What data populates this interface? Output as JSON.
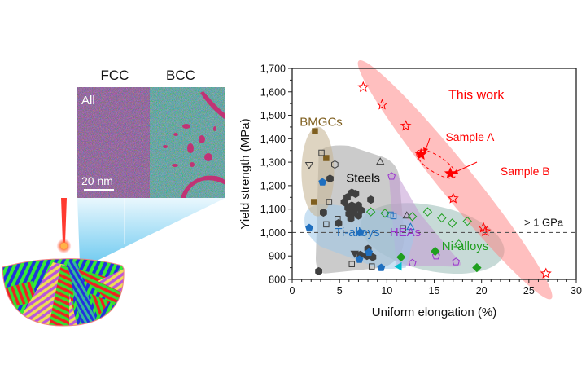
{
  "illustration": {
    "phase_labels": [
      "FCC",
      "BCC"
    ],
    "micrograph_label": "All",
    "scale_bar_label": "20 nm"
  },
  "chart_data": {
    "type": "scatter",
    "title": "",
    "xlabel": "Uniform elongation (%)",
    "ylabel": "Yield strength (MPa)",
    "xlim": [
      0,
      30
    ],
    "ylim": [
      800,
      1700
    ],
    "xticks": [
      0,
      5,
      10,
      15,
      20,
      25,
      30
    ],
    "xtick_labels": [
      "0",
      "5",
      "10",
      "15",
      "20",
      "25",
      "30"
    ],
    "yticks": [
      800,
      900,
      1000,
      1100,
      1200,
      1300,
      1400,
      1500,
      1600,
      1700
    ],
    "ytick_labels": [
      "800",
      "900",
      "1,000",
      "1,100",
      "1,200",
      "1,300",
      "1,400",
      "1,500",
      "1,600",
      "1,700"
    ],
    "grid": false,
    "reference_line": {
      "y": 1000,
      "label": "> 1 GPa",
      "style": "dashed"
    },
    "colors": {
      "this_work": "#ff0000",
      "bmgcs": "#7f5f1f",
      "steels": "#404040",
      "ti_alloys": "#1f6fbf",
      "heas": "#9933cc",
      "ni_alloys": "#1f9f1f",
      "cyan": "#00bfcf"
    },
    "annotations": [
      {
        "text": "This work",
        "x": 16.5,
        "y": 1570,
        "color": "#ff0000"
      },
      {
        "text": "Sample A",
        "x": 16.2,
        "y": 1390,
        "color": "#ff0000"
      },
      {
        "text": "Sample B",
        "x": 22,
        "y": 1245,
        "color": "#ff0000"
      },
      {
        "text": "BMGCs",
        "x": 0.8,
        "y": 1455,
        "color": "#7f5f1f"
      },
      {
        "text": "Steels",
        "x": 5.7,
        "y": 1215,
        "color": "#000000"
      },
      {
        "text": "Ti-alloys",
        "x": 4.5,
        "y": 985,
        "color": "#1f6fbf"
      },
      {
        "text": "HEAs",
        "x": 10.3,
        "y": 985,
        "color": "#9933cc"
      },
      {
        "text": "Ni-alloys",
        "x": 15.8,
        "y": 925,
        "color": "#1f9f1f"
      }
    ],
    "series": [
      {
        "name": "This work",
        "marker": "star-open",
        "color": "#ff0000",
        "points": [
          [
            7.5,
            1620
          ],
          [
            9.5,
            1545
          ],
          [
            12,
            1455
          ],
          [
            17,
            1145
          ],
          [
            20.2,
            1020
          ],
          [
            20.4,
            1005
          ],
          [
            26.8,
            825
          ]
        ]
      },
      {
        "name": "Sample A",
        "marker": "star-filled",
        "color": "#ff0000",
        "points": [
          [
            13.6,
            1333
          ]
        ]
      },
      {
        "name": "Sample B",
        "marker": "star-filled",
        "color": "#ff0000",
        "points": [
          [
            16.7,
            1252
          ]
        ]
      },
      {
        "name": "BMGCs",
        "marker": "square-filled",
        "color": "#7f5f1f",
        "points": [
          [
            2.4,
            1432
          ],
          [
            3.6,
            1318
          ],
          [
            2.3,
            1130
          ]
        ]
      },
      {
        "name": "Steels (open square)",
        "marker": "square-open",
        "color": "#404040",
        "points": [
          [
            3.1,
            1340
          ],
          [
            3.9,
            1130
          ],
          [
            4.8,
            1058
          ],
          [
            3.6,
            1035
          ],
          [
            6.3,
            865
          ],
          [
            8.4,
            855
          ],
          [
            11.7,
            1018
          ]
        ]
      },
      {
        "name": "Steels (open triangle down)",
        "marker": "triangle-down-open",
        "color": "#404040",
        "points": [
          [
            1.8,
            1290
          ]
        ]
      },
      {
        "name": "Steels (open hexagon)",
        "marker": "hexagon-open",
        "color": "#404040",
        "points": [
          [
            4.5,
            1290
          ]
        ]
      },
      {
        "name": "Steels (open triangle up)",
        "marker": "triangle-up-open",
        "color": "#404040",
        "points": [
          [
            9.3,
            1300
          ],
          [
            12.1,
            1070
          ]
        ]
      },
      {
        "name": "Steels (filled)",
        "marker": "hexagon-filled",
        "color": "#404040",
        "points": [
          [
            4.0,
            1230
          ],
          [
            5.8,
            1150
          ],
          [
            6.3,
            1170
          ],
          [
            6.7,
            1165
          ],
          [
            5.5,
            1130
          ],
          [
            6.3,
            1115
          ],
          [
            6.6,
            1100
          ],
          [
            5.9,
            1105
          ],
          [
            7.0,
            1115
          ],
          [
            8.3,
            1140
          ],
          [
            7.3,
            1095
          ],
          [
            6.0,
            1080
          ],
          [
            6.5,
            1085
          ],
          [
            7.0,
            1072
          ],
          [
            6.2,
            1060
          ],
          [
            3.3,
            1085
          ],
          [
            4.9,
            1040
          ],
          [
            8.0,
            930
          ],
          [
            7.9,
            900
          ],
          [
            8.5,
            895
          ],
          [
            7.2,
            905
          ],
          [
            2.8,
            835
          ]
        ]
      },
      {
        "name": "Steels (filled triangle down)",
        "marker": "triangle-down-filled",
        "color": "#404040",
        "points": [
          [
            6.6,
            912
          ]
        ]
      },
      {
        "name": "Ti-alloys",
        "marker": "mixed-filled",
        "color": "#1f6fbf",
        "points": [
          [
            3.2,
            1215
          ],
          [
            1.8,
            1020
          ],
          [
            7.2,
            1000
          ],
          [
            7.1,
            885
          ],
          [
            8.1,
            915
          ],
          [
            9.4,
            850
          ]
        ]
      },
      {
        "name": "Ti-alloys (open square)",
        "marker": "square-open",
        "color": "#1f6fbf",
        "points": [
          [
            10.4,
            1076
          ],
          [
            10.7,
            1070
          ]
        ]
      },
      {
        "name": "Ti-alloys (open triangle)",
        "marker": "triangle-up-open",
        "color": "#1f6fbf",
        "points": [
          [
            12.5,
            1022
          ]
        ]
      },
      {
        "name": "Ti-alloys (cyan)",
        "marker": "triangle-left-filled",
        "color": "#00bfcf",
        "points": [
          [
            11.3,
            855
          ]
        ]
      },
      {
        "name": "HEAs",
        "marker": "mixed-open",
        "color": "#9933cc",
        "points": [
          [
            10.5,
            1240
          ],
          [
            15.2,
            900
          ],
          [
            12.7,
            870
          ],
          [
            17.3,
            875
          ]
        ]
      },
      {
        "name": "Ni-alloys (open diamond)",
        "marker": "diamond-open",
        "color": "#1f9f1f",
        "points": [
          [
            8.3,
            1088
          ],
          [
            9.8,
            1082
          ],
          [
            12.7,
            1068
          ],
          [
            14.3,
            1088
          ],
          [
            15.8,
            1062
          ],
          [
            18.5,
            1048
          ],
          [
            16.9,
            1040
          ],
          [
            17.6,
            950
          ]
        ]
      },
      {
        "name": "Ni-alloys (filled diamond)",
        "marker": "diamond-filled",
        "color": "#1f9f1f",
        "points": [
          [
            11.5,
            895
          ],
          [
            15.1,
            920
          ],
          [
            19.5,
            850
          ]
        ]
      }
    ],
    "regions": [
      {
        "name": "This work",
        "color": "#ff8080"
      },
      {
        "name": "BMGCs",
        "color": "#c8b898"
      },
      {
        "name": "Steels",
        "color": "#a8a8a8"
      },
      {
        "name": "Ti-alloys",
        "color": "#9fc9ea"
      },
      {
        "name": "HEAs",
        "color": "#c39bd3"
      },
      {
        "name": "Ni-alloys",
        "color": "#8fb5b0"
      }
    ]
  }
}
